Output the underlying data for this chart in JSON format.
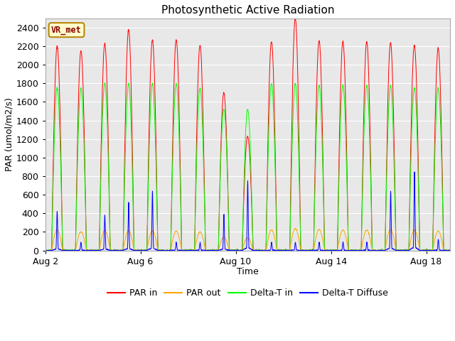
{
  "title": "Photosynthetic Active Radiation",
  "xlabel": "Time",
  "ylabel": "PAR (umol/m2/s)",
  "ylim": [
    0,
    2500
  ],
  "yticks": [
    0,
    200,
    400,
    600,
    800,
    1000,
    1200,
    1400,
    1600,
    1800,
    2000,
    2200,
    2400
  ],
  "xtick_labels": [
    "Aug 2",
    "Aug 6",
    "Aug 10",
    "Aug 14",
    "Aug 18"
  ],
  "plot_bg_color": "#e8e8e8",
  "fig_bg_color": "#ffffff",
  "legend_entries": [
    "PAR in",
    "PAR out",
    "Delta-T in",
    "Delta-T Diffuse"
  ],
  "legend_colors": [
    "#ff0000",
    "#ffa500",
    "#00ff00",
    "#0000ff"
  ],
  "annotation_text": "VR_met",
  "n_days": 17,
  "par_in_peaks": [
    2200,
    2150,
    2230,
    2380,
    2270,
    2270,
    2210,
    1700,
    1230,
    2250,
    2500,
    2260,
    2250,
    2250,
    2240,
    2210,
    2180
  ],
  "par_out_peaks": [
    220,
    200,
    215,
    215,
    210,
    210,
    200,
    140,
    135,
    220,
    235,
    225,
    220,
    220,
    225,
    220,
    210
  ],
  "dt_in_peaks": [
    1750,
    1750,
    1800,
    1800,
    1800,
    1800,
    1750,
    1520,
    1520,
    1800,
    1800,
    1780,
    1780,
    1780,
    1780,
    1750,
    1750
  ],
  "dt_diff_peaks": [
    420,
    90,
    380,
    520,
    640,
    90,
    90,
    390,
    750,
    90,
    90,
    90,
    90,
    90,
    640,
    850,
    120
  ],
  "xtick_positions": [
    0,
    4,
    8,
    12,
    16
  ]
}
